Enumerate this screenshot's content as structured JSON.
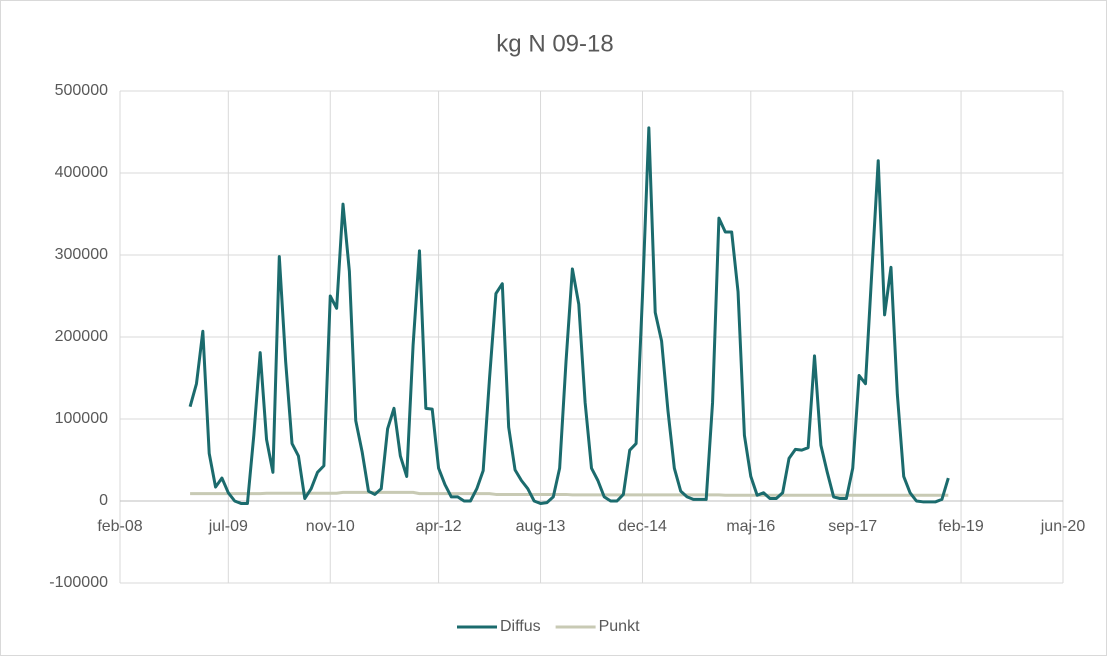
{
  "chart_data": {
    "type": "line",
    "title": "kg N 09-18",
    "x": [
      "2009-01",
      "2009-02",
      "2009-03",
      "2009-04",
      "2009-05",
      "2009-06",
      "2009-07",
      "2009-08",
      "2009-09",
      "2009-10",
      "2009-11",
      "2009-12",
      "2010-01",
      "2010-02",
      "2010-03",
      "2010-04",
      "2010-05",
      "2010-06",
      "2010-07",
      "2010-08",
      "2010-09",
      "2010-10",
      "2010-11",
      "2010-12",
      "2011-01",
      "2011-02",
      "2011-03",
      "2011-04",
      "2011-05",
      "2011-06",
      "2011-07",
      "2011-08",
      "2011-09",
      "2011-10",
      "2011-11",
      "2011-12",
      "2012-01",
      "2012-02",
      "2012-03",
      "2012-04",
      "2012-05",
      "2012-06",
      "2012-07",
      "2012-08",
      "2012-09",
      "2012-10",
      "2012-11",
      "2012-12",
      "2013-01",
      "2013-02",
      "2013-03",
      "2013-04",
      "2013-05",
      "2013-06",
      "2013-07",
      "2013-08",
      "2013-09",
      "2013-10",
      "2013-11",
      "2013-12",
      "2014-01",
      "2014-02",
      "2014-03",
      "2014-04",
      "2014-05",
      "2014-06",
      "2014-07",
      "2014-08",
      "2014-09",
      "2014-10",
      "2014-11",
      "2014-12",
      "2015-01",
      "2015-02",
      "2015-03",
      "2015-04",
      "2015-05",
      "2015-06",
      "2015-07",
      "2015-08",
      "2015-09",
      "2015-10",
      "2015-11",
      "2015-12",
      "2016-01",
      "2016-02",
      "2016-03",
      "2016-04",
      "2016-05",
      "2016-06",
      "2016-07",
      "2016-08",
      "2016-09",
      "2016-10",
      "2016-11",
      "2016-12",
      "2017-01",
      "2017-02",
      "2017-03",
      "2017-04",
      "2017-05",
      "2017-06",
      "2017-07",
      "2017-08",
      "2017-09",
      "2017-10",
      "2017-11",
      "2017-12",
      "2018-01",
      "2018-02",
      "2018-03",
      "2018-04",
      "2018-05",
      "2018-06",
      "2018-07",
      "2018-08",
      "2018-09",
      "2018-10",
      "2018-11",
      "2018-12"
    ],
    "series": [
      {
        "name": "Diffus",
        "color": "#1b6b6d",
        "values": [
          115000,
          143000,
          207000,
          58000,
          17000,
          28000,
          10000,
          0,
          -3000,
          -3000,
          80000,
          181000,
          75000,
          35000,
          298000,
          170000,
          70000,
          55000,
          3000,
          15000,
          35000,
          43000,
          250000,
          235000,
          362000,
          280000,
          98000,
          60000,
          12000,
          8000,
          15000,
          88000,
          113000,
          55000,
          30000,
          190000,
          305000,
          113000,
          112000,
          40000,
          20000,
          5000,
          5000,
          0,
          0,
          15000,
          37000,
          150000,
          253000,
          265000,
          90000,
          38000,
          25000,
          15000,
          0,
          -3000,
          -2000,
          5000,
          40000,
          170000,
          283000,
          240000,
          120000,
          40000,
          25000,
          5000,
          0,
          0,
          8000,
          62000,
          70000,
          250000,
          455000,
          230000,
          195000,
          110000,
          40000,
          12000,
          5000,
          2000,
          2000,
          2000,
          120000,
          345000,
          328000,
          328000,
          255000,
          80000,
          30000,
          7000,
          10000,
          3000,
          3000,
          10000,
          52000,
          63000,
          62000,
          65000,
          177000,
          68000,
          35000,
          5000,
          3000,
          3000,
          40000,
          153000,
          143000,
          280000,
          415000,
          227000,
          285000,
          130000,
          30000,
          10000,
          0,
          -1000,
          -1000,
          -1000,
          2000,
          28000
        ]
      },
      {
        "name": "Punkt",
        "color": "#c8cab4",
        "values": [
          9000,
          9000,
          9000,
          9000,
          9000,
          9000,
          9000,
          9000,
          9000,
          9000,
          9000,
          9000,
          9500,
          9500,
          9500,
          9500,
          9500,
          9500,
          9500,
          9500,
          9500,
          9500,
          9500,
          9500,
          10500,
          10500,
          10500,
          10500,
          10500,
          10500,
          10500,
          10500,
          10500,
          10500,
          10500,
          10500,
          9000,
          9000,
          9000,
          9000,
          9000,
          9000,
          9000,
          9000,
          9000,
          9000,
          9000,
          9000,
          8000,
          8000,
          8000,
          8000,
          8000,
          8000,
          8000,
          8000,
          8000,
          8000,
          8000,
          8000,
          7500,
          7500,
          7500,
          7500,
          7500,
          7500,
          7500,
          7500,
          7500,
          7500,
          7500,
          7500,
          7500,
          7500,
          7500,
          7500,
          7500,
          7500,
          7500,
          7500,
          7500,
          7500,
          7500,
          7500,
          7000,
          7000,
          7000,
          7000,
          7000,
          7000,
          7000,
          7000,
          7000,
          7000,
          7000,
          7000,
          7000,
          7000,
          7000,
          7000,
          7000,
          7000,
          7000,
          7000,
          7000,
          7000,
          7000,
          7000,
          7000,
          7000,
          7000,
          7000,
          7000,
          7000,
          7000,
          7000,
          7000,
          7000,
          7000,
          7000
        ]
      }
    ],
    "xlim": [
      "2008-02",
      "2020-06"
    ],
    "xticks": [
      {
        "value": "2008-02",
        "label": "feb-08"
      },
      {
        "value": "2009-07",
        "label": "jul-09"
      },
      {
        "value": "2010-11",
        "label": "nov-10"
      },
      {
        "value": "2012-04",
        "label": "apr-12"
      },
      {
        "value": "2013-08",
        "label": "aug-13"
      },
      {
        "value": "2014-12",
        "label": "dec-14"
      },
      {
        "value": "2016-05",
        "label": "maj-16"
      },
      {
        "value": "2017-09",
        "label": "sep-17"
      },
      {
        "value": "2019-02",
        "label": "feb-19"
      },
      {
        "value": "2020-06",
        "label": "jun-20"
      }
    ],
    "ylim": [
      -100000,
      500000
    ],
    "yticks": [
      -100000,
      0,
      100000,
      200000,
      300000,
      400000,
      500000
    ],
    "grid": true,
    "legend": "bottom"
  }
}
